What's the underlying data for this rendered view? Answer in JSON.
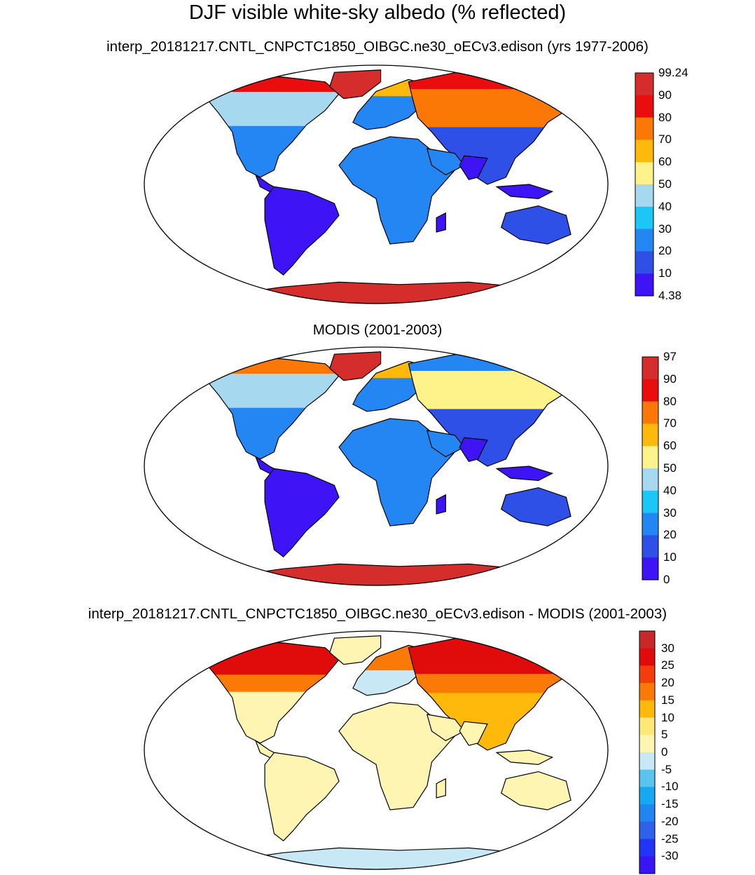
{
  "main_title": "DJF visible white-sky albedo (% reflected)",
  "panels": [
    {
      "title": "interp_20181217.CNTL_CNPCTC1850_OIBGC.ne30_oECv3.edison (yrs 1977-2006)",
      "colorbar": {
        "labels": [
          "99.24",
          "90",
          "80",
          "70",
          "60",
          "50",
          "40",
          "30",
          "20",
          "10",
          "4.38"
        ],
        "colors": [
          "#d52c2c",
          "#ea0d0d",
          "#fb7806",
          "#feb90b",
          "#fef28b",
          "#a6d8f0",
          "#1cc6f7",
          "#2486f3",
          "#2f50e6",
          "#3e14f6"
        ]
      }
    },
    {
      "title": "MODIS (2001-2003)",
      "colorbar": {
        "labels": [
          "97",
          "90",
          "80",
          "70",
          "60",
          "50",
          "40",
          "30",
          "20",
          "10",
          "0"
        ],
        "colors": [
          "#d52c2c",
          "#ea0d0d",
          "#fb7806",
          "#feb90b",
          "#fef28b",
          "#a6d8f0",
          "#1cc6f7",
          "#2486f3",
          "#2f50e6",
          "#3e14f6"
        ]
      }
    },
    {
      "title": "interp_20181217.CNTL_CNPCTC1850_OIBGC.ne30_oECv3.edison - MODIS (2001-2003)",
      "colorbar": {
        "labels": [
          "30",
          "25",
          "20",
          "15",
          "10",
          "5",
          "0",
          "-5",
          "-10",
          "-15",
          "-20",
          "-25",
          "-30"
        ],
        "colors": [
          "#c8282a",
          "#e00b0b",
          "#f53d0c",
          "#fb7a06",
          "#ffb90b",
          "#ffe87a",
          "#fff5b3",
          "#c9e8f6",
          "#5bc3ef",
          "#16a8f0",
          "#2186f2",
          "#2f62ea",
          "#2234f6",
          "#3a14f4"
        ]
      }
    }
  ]
}
